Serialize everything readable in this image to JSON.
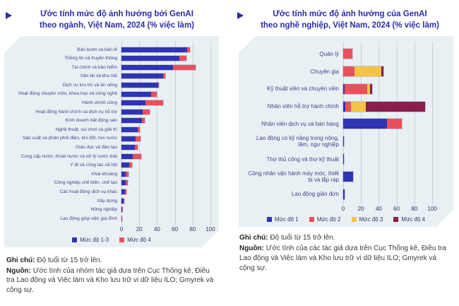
{
  "header_left": {
    "line1": "Ước tính mức độ ảnh hưởng bởi GenAI",
    "line2": "theo ngành, Việt Nam, 2024 (% việc làm)"
  },
  "header_right": {
    "line1": "Ước tính mức độ ảnh hưởng của GenAI",
    "line2": "theo nghề nghiệp, Việt Nam, 2024 (% việc làm)"
  },
  "notes_left": {
    "note_label": "Ghi chú:",
    "note_text": " Độ tuổi từ 15 trở lên.",
    "source_label": "Nguồn:",
    "source_text": " Ước tính của nhóm tác giả dựa trên Cục Thống kê, Điều tra Lao động và Việc làm và Kho lưu trữ vi dữ liệu ILO; Gmyrek và cộng sự."
  },
  "notes_right": {
    "note_label": "Ghi chú:",
    "note_text": " Độ tuổi từ 15 trở lên.",
    "source_label": "Nguồn:",
    "source_text": " Ước tính của các tác giả dựa trên Cục Thống kê, Điều tra Lao động và Việc làm và Kho lưu trữ vi dữ liệu ILO; Gmyrek và cộng sự."
  },
  "colors": {
    "title": "#2b2bad",
    "panel": "#e9f0f3",
    "grid": "#c9ced6",
    "label": "#45408f",
    "tick": "#30305f",
    "note": "#3a3a3a",
    "level1_blue": "#2d35b2",
    "level2_red": "#e9515a",
    "level3_yellow": "#f5c445",
    "level4_maroon": "#8b1d4b"
  },
  "chart_data": [
    {
      "type": "bar",
      "orientation": "horizontal",
      "stacked": true,
      "title": "Ước tính mức độ ảnh hưởng bởi GenAI theo ngành, Việt Nam, 2024 (% việc làm)",
      "xlabel": "% việc làm",
      "xlim": [
        0,
        100
      ],
      "xticks": [
        0,
        20,
        40,
        60,
        80,
        100
      ],
      "grid": true,
      "legend_position": "bottom",
      "categories": [
        "Bán buôn và bán lẻ",
        "Thông tin và truyền thông",
        "Tài chính và bảo hiểm",
        "Vận tải và kho bãi",
        "Dịch vụ lưu trú và ăn uống",
        "Hoạt động chuyên môn, khoa học và công nghệ",
        "Hành chính công",
        "Hoạt động hành chính và dịch vụ hỗ trợ",
        "Kinh doanh bất động sản",
        "Nghệ thuật, vui chơi và giải trí",
        "Sản xuất và phân phối điện, khí đốt, hơi nước",
        "Giáo dục và đào tạo",
        "Cung cấp nước, thoát nước và xử lý nước thải",
        "Y tế và công tác xã hội",
        "Khai khoáng",
        "Công nghiệp chế biến, chế tạo",
        "Các hoạt động dịch vụ khác",
        "Xây dựng",
        "Nông nghiệp",
        "Lao động giúp việc gia đình"
      ],
      "series": [
        {
          "name": "Mức độ 1-3",
          "color": "#2d35b2",
          "values": [
            74,
            65,
            58,
            47,
            41,
            33,
            27,
            24,
            23,
            18,
            15.5,
            15,
            13,
            9,
            5,
            5,
            4,
            2.5,
            0.6,
            0.3
          ]
        },
        {
          "name": "Mức độ 4",
          "color": "#e9515a",
          "values": [
            3,
            8,
            25,
            2.5,
            1,
            7,
            20,
            8,
            3,
            3,
            6,
            3,
            9,
            3,
            3,
            2,
            1.5,
            1,
            0.4,
            0.2
          ]
        }
      ]
    },
    {
      "type": "bar",
      "orientation": "horizontal",
      "stacked": true,
      "title": "Ước tính mức độ ảnh hưởng của GenAI theo nghề nghiệp, Việt Nam, 2024 (% việc làm)",
      "xlabel": "% việc làm",
      "xlim": [
        0,
        100
      ],
      "xticks": [
        0,
        20,
        40,
        60,
        80,
        100
      ],
      "grid": true,
      "legend_position": "bottom",
      "categories": [
        "Quản lý",
        "Chuyên gia",
        "Kỹ thuật viên và chuyên viên",
        "Nhân viên hỗ trợ hành chính",
        "Nhân viên dịch vụ và bán hàng",
        "Lao động có kỹ năng trong nông, lâm, ngư nghiệp",
        "Thợ thủ công và thợ kỹ thuật",
        "Công nhân vận hành máy móc, thiết bị và lắp ráp",
        "Lao động giản đơn"
      ],
      "series": [
        {
          "name": "Mức độ 1",
          "color": "#2d35b2",
          "values": [
            0,
            0,
            1.7,
            2.3,
            49.5,
            0.2,
            0.2,
            11.5,
            1.5
          ]
        },
        {
          "name": "Mức độ 2",
          "color": "#e9515a",
          "values": [
            10.5,
            13,
            25,
            6.5,
            16,
            0,
            0,
            0,
            0
          ]
        },
        {
          "name": "Mức độ 3",
          "color": "#f5c445",
          "values": [
            0,
            30,
            3.5,
            17,
            0,
            0,
            0,
            0,
            0
          ]
        },
        {
          "name": "Mức độ 4",
          "color": "#8b1d4b",
          "values": [
            0,
            2.5,
            2.5,
            66,
            0,
            0,
            0,
            0,
            0
          ]
        }
      ]
    }
  ]
}
